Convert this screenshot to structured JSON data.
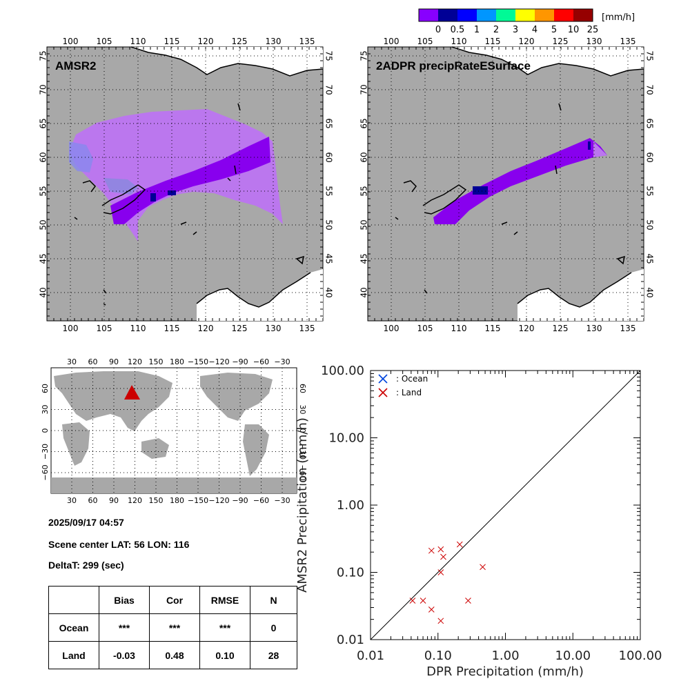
{
  "legend": {
    "unit": "[mm/h]",
    "tick_labels": [
      "0",
      "0.5",
      "1",
      "2",
      "3",
      "4",
      "5",
      "10",
      "25"
    ],
    "colors": [
      "#8800ff",
      "#000096",
      "#0000ff",
      "#0096ff",
      "#00fa96",
      "#ffff00",
      "#ff9600",
      "#ff0000",
      "#960000"
    ]
  },
  "map_left": {
    "title": "AMSR2",
    "lon_ticks": [
      "100",
      "105",
      "110",
      "115",
      "120",
      "125",
      "130",
      "135"
    ],
    "lat_ticks": [
      "40",
      "45",
      "50",
      "55",
      "60",
      "65",
      "70",
      "75"
    ]
  },
  "map_right": {
    "title": "2ADPR precipRateESurface",
    "lon_ticks": [
      "100",
      "105",
      "110",
      "115",
      "120",
      "125",
      "130",
      "135"
    ],
    "lat_ticks": [
      "40",
      "45",
      "50",
      "55",
      "60",
      "65",
      "70",
      "75"
    ]
  },
  "globe": {
    "lon_ticks": [
      "30",
      "60",
      "90",
      "120",
      "150",
      "180",
      "−150",
      "−120",
      "−90",
      "−60",
      "−30"
    ],
    "lat_ticks": [
      "−60",
      "−30",
      "0",
      "30",
      "60"
    ],
    "marker_icon": "red-triangle-icon"
  },
  "info": {
    "datetime": "2025/09/17 04:57",
    "scene_center": "Scene center LAT: 56   LON: 116",
    "delta_t": "DeltaT:  299 (sec)"
  },
  "stats_table": {
    "headers": [
      "",
      "Bias",
      "Cor",
      "RMSE",
      "N"
    ],
    "rows": [
      {
        "label": "Ocean",
        "bias": "***",
        "cor": "***",
        "rmse": "***",
        "n": "0"
      },
      {
        "label": "Land",
        "bias": "-0.03",
        "cor": "0.48",
        "rmse": "0.10",
        "n": "28"
      }
    ]
  },
  "chart_data": {
    "type": "scatter",
    "xlabel": "DPR Precipitation (mm/h)",
    "ylabel": "AMSR2 Precipitation (mm/h)",
    "xscale": "log",
    "yscale": "log",
    "xlim": [
      0.01,
      100
    ],
    "ylim": [
      0.01,
      100
    ],
    "x_tick_labels": [
      "0.01",
      "0.10",
      "1.00",
      "10.00",
      "100.00"
    ],
    "y_tick_labels": [
      "0.01",
      "0.10",
      "1.00",
      "10.00",
      "100.00"
    ],
    "legend_position": "top-left",
    "diagonal_line": true,
    "series": [
      {
        "name": ": Ocean",
        "color": "#0044dd",
        "marker": "x",
        "points": []
      },
      {
        "name": ": Land",
        "color": "#cc0000",
        "marker": "x",
        "points": [
          [
            0.08,
            0.21
          ],
          [
            0.11,
            0.22
          ],
          [
            0.12,
            0.17
          ],
          [
            0.21,
            0.26
          ],
          [
            0.46,
            0.12
          ],
          [
            0.11,
            0.1
          ],
          [
            0.042,
            0.038
          ],
          [
            0.06,
            0.038
          ],
          [
            0.08,
            0.028
          ],
          [
            0.28,
            0.038
          ],
          [
            0.11,
            0.019
          ]
        ]
      }
    ]
  }
}
